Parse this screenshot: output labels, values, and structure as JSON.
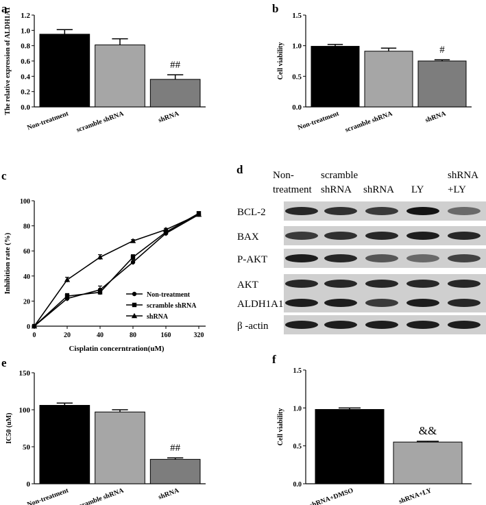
{
  "panels": {
    "a": {
      "letter": "a"
    },
    "b": {
      "letter": "b"
    },
    "c": {
      "letter": "c"
    },
    "d": {
      "letter": "d"
    },
    "e": {
      "letter": "e"
    },
    "f": {
      "letter": "f"
    }
  },
  "chart_data": [
    {
      "id": "a",
      "type": "bar",
      "categories": [
        "Non-treatment",
        "scramble shRNA",
        "shRNA"
      ],
      "values": [
        0.95,
        0.81,
        0.36
      ],
      "errors": [
        0.06,
        0.08,
        0.06
      ],
      "colors": [
        "#000000",
        "#a6a6a6",
        "#7d7d7d"
      ],
      "annotations": [
        "",
        "",
        "##"
      ],
      "ylabel": "The relative expression of ALDH1A1",
      "ylim": [
        0,
        1.2
      ],
      "yticks": [
        "0.0",
        "0.2",
        "0.4",
        "0.6",
        "0.8",
        "1.0",
        "1.2"
      ],
      "ytick_values": [
        0,
        0.2,
        0.4,
        0.6,
        0.8,
        1.0,
        1.2
      ]
    },
    {
      "id": "b",
      "type": "bar",
      "categories": [
        "Non-treatment",
        "scramble shRNA",
        "shRNA"
      ],
      "values": [
        0.99,
        0.91,
        0.75
      ],
      "errors": [
        0.03,
        0.05,
        0.02
      ],
      "colors": [
        "#000000",
        "#a6a6a6",
        "#7d7d7d"
      ],
      "annotations": [
        "",
        "",
        "#"
      ],
      "ylabel": "Cell viability",
      "ylim": [
        0,
        1.5
      ],
      "yticks": [
        "0.0",
        "0.5",
        "1.0",
        "1.5"
      ],
      "ytick_values": [
        0,
        0.5,
        1.0,
        1.5
      ]
    },
    {
      "id": "c",
      "type": "line",
      "x": [
        "0",
        "20",
        "40",
        "80",
        "160",
        "320"
      ],
      "xlabel": "Cisplatin concerntration(uM)",
      "ylabel": "Inhibition rate (%)",
      "ylim": [
        0,
        100
      ],
      "yticks": [
        "0",
        "20",
        "40",
        "60",
        "80",
        "100"
      ],
      "ytick_values": [
        0,
        20,
        40,
        60,
        80,
        100
      ],
      "legend_position": "lower-right",
      "series": [
        {
          "name": "Non-treatment",
          "marker": "circle",
          "values": [
            0,
            22,
            29,
            51,
            74,
            89
          ],
          "errors": [
            0,
            2,
            3,
            2,
            2,
            1
          ]
        },
        {
          "name": "scramble shRNA",
          "marker": "square",
          "values": [
            0,
            24,
            27,
            55,
            75,
            90
          ],
          "errors": [
            0,
            2,
            2,
            2,
            2,
            1
          ]
        },
        {
          "name": "shRNA",
          "marker": "triangle",
          "values": [
            0,
            37,
            55,
            68,
            77,
            89
          ],
          "errors": [
            0,
            2,
            2,
            1,
            1,
            1
          ]
        }
      ]
    },
    {
      "id": "e",
      "type": "bar",
      "categories": [
        "Non-treatment",
        "scramble shRNA",
        "shRNA"
      ],
      "values": [
        106,
        97,
        33
      ],
      "errors": [
        3,
        3,
        2
      ],
      "colors": [
        "#000000",
        "#a6a6a6",
        "#7d7d7d"
      ],
      "annotations": [
        "",
        "",
        "##"
      ],
      "ylabel": "IC50 (uM)",
      "ylim": [
        0,
        150
      ],
      "yticks": [
        "0",
        "50",
        "100",
        "150"
      ],
      "ytick_values": [
        0,
        50,
        100,
        150
      ]
    },
    {
      "id": "f",
      "type": "bar",
      "categories": [
        "shRNA+DMSO",
        "shRNA+LY"
      ],
      "values": [
        0.98,
        0.55
      ],
      "errors": [
        0.02,
        0.01
      ],
      "colors": [
        "#000000",
        "#a6a6a6"
      ],
      "annotations": [
        "",
        "&&"
      ],
      "ylabel": "Cell viability",
      "ylim": [
        0,
        1.5
      ],
      "yticks": [
        "0.0",
        "0.5",
        "1.0",
        "1.5"
      ],
      "ytick_values": [
        0,
        0.5,
        1.0,
        1.5
      ]
    }
  ],
  "blot": {
    "lanes": [
      {
        "line1": "Non-",
        "line2": "treatment"
      },
      {
        "line1": "scramble",
        "line2": "shRNA"
      },
      {
        "line1": "",
        "line2": "shRNA"
      },
      {
        "line1": "",
        "line2": "LY"
      },
      {
        "line1": "shRNA",
        "line2": "+LY"
      }
    ],
    "rows": [
      {
        "label": "BCL-2",
        "intensity": [
          0.85,
          0.8,
          0.75,
          0.95,
          0.5
        ]
      },
      {
        "label": "BAX",
        "intensity": [
          0.75,
          0.8,
          0.85,
          0.9,
          0.85
        ]
      },
      {
        "label": "P-AKT",
        "intensity": [
          0.9,
          0.85,
          0.6,
          0.5,
          0.7
        ]
      },
      {
        "label": "AKT",
        "intensity": [
          0.85,
          0.85,
          0.85,
          0.85,
          0.85
        ]
      },
      {
        "label": "ALDH1A1",
        "intensity": [
          0.9,
          0.9,
          0.75,
          0.9,
          0.85
        ]
      },
      {
        "label": "β -actin",
        "intensity": [
          0.9,
          0.9,
          0.9,
          0.9,
          0.9
        ]
      }
    ]
  }
}
